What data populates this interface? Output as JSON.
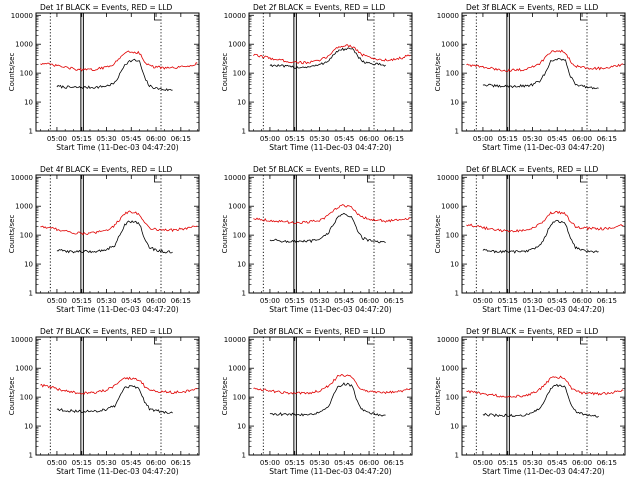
{
  "figure": {
    "common": {
      "type": "line",
      "xlabel": "Start Time (11-Dec-03 04:47:20)",
      "ylabel": "Counts/sec",
      "xtick_labels": [
        "05:00",
        "05:15",
        "05:30",
        "05:45",
        "06:00",
        "06:15"
      ],
      "xtick_minutes": [
        0,
        15,
        30,
        45,
        60,
        75
      ],
      "ytick_labels": [
        "1",
        "10",
        "100",
        "1000",
        "10000"
      ],
      "yscale": "log",
      "ylim": [
        1,
        12000
      ],
      "xlim_minutes": [
        -12.67,
        86
      ],
      "series_names": [
        "Events",
        "LLD"
      ],
      "series_colors": [
        "#000000",
        "#e00000"
      ],
      "dotted_lines_minutes": [
        -4,
        63
      ],
      "double_lines_minutes": [
        14.5,
        16
      ]
    }
  },
  "chart_data": [
    {
      "type": "line",
      "title": "Det 1f BLACK = Events, RED = LLD",
      "xlabel": "Start Time (11-Dec-03 04:47:20)",
      "ylabel": "Counts/sec",
      "x_minutes": [
        -10,
        -5,
        0,
        5,
        10,
        15,
        20,
        25,
        30,
        35,
        38,
        41,
        44,
        47,
        50,
        53,
        56,
        60,
        65,
        70,
        75,
        80,
        85
      ],
      "series": [
        {
          "name": "Events",
          "color": "black",
          "values": [
            null,
            null,
            35,
            33,
            32,
            32,
            32,
            33,
            36,
            45,
            90,
            200,
            260,
            280,
            250,
            70,
            36,
            30,
            27,
            26,
            null,
            null,
            null
          ]
        },
        {
          "name": "LLD",
          "color": "red",
          "values": [
            220,
            200,
            180,
            160,
            140,
            130,
            130,
            140,
            160,
            220,
            320,
            520,
            560,
            540,
            500,
            250,
            180,
            160,
            150,
            150,
            160,
            180,
            220
          ]
        }
      ]
    },
    {
      "type": "line",
      "title": "Det 2f BLACK = Events, RED = LLD",
      "xlabel": "Start Time (11-Dec-03 04:47:20)",
      "ylabel": "Counts/sec",
      "x_minutes": [
        -10,
        -5,
        0,
        5,
        10,
        15,
        20,
        25,
        30,
        35,
        38,
        41,
        44,
        47,
        50,
        53,
        56,
        60,
        65,
        70,
        75,
        80,
        85
      ],
      "series": [
        {
          "name": "Events",
          "color": "black",
          "values": [
            null,
            null,
            190,
            180,
            170,
            160,
            160,
            170,
            190,
            260,
            400,
            580,
            650,
            700,
            650,
            400,
            260,
            220,
            200,
            190,
            null,
            null,
            null
          ]
        },
        {
          "name": "LLD",
          "color": "red",
          "values": [
            420,
            380,
            330,
            290,
            260,
            240,
            230,
            240,
            270,
            380,
            550,
            800,
            870,
            900,
            850,
            600,
            430,
            350,
            300,
            280,
            300,
            340,
            420
          ]
        }
      ]
    },
    {
      "type": "line",
      "title": "Det 3f BLACK = Events, RED = LLD",
      "xlabel": "Start Time (11-Dec-03 04:47:20)",
      "ylabel": "Counts/sec",
      "x_minutes": [
        -10,
        -5,
        0,
        5,
        10,
        15,
        20,
        25,
        30,
        35,
        38,
        41,
        44,
        47,
        50,
        53,
        56,
        60,
        65,
        70,
        75,
        80,
        85
      ],
      "series": [
        {
          "name": "Events",
          "color": "black",
          "values": [
            null,
            null,
            40,
            37,
            35,
            35,
            35,
            36,
            40,
            55,
            110,
            250,
            320,
            300,
            260,
            80,
            42,
            36,
            32,
            30,
            null,
            null,
            null
          ]
        },
        {
          "name": "LLD",
          "color": "red",
          "values": [
            200,
            180,
            160,
            145,
            130,
            125,
            125,
            135,
            160,
            230,
            350,
            550,
            600,
            580,
            520,
            260,
            180,
            160,
            150,
            145,
            150,
            170,
            200
          ]
        }
      ]
    },
    {
      "type": "line",
      "title": "Det 4f BLACK = Events, RED = LLD",
      "xlabel": "Start Time (11-Dec-03 04:47:20)",
      "ylabel": "Counts/sec",
      "x_minutes": [
        -10,
        -5,
        0,
        5,
        10,
        15,
        20,
        25,
        30,
        35,
        38,
        41,
        44,
        47,
        50,
        53,
        56,
        60,
        65,
        70,
        75,
        80,
        85
      ],
      "series": [
        {
          "name": "Events",
          "color": "black",
          "values": [
            null,
            null,
            30,
            28,
            27,
            27,
            27,
            28,
            32,
            45,
            100,
            230,
            300,
            290,
            250,
            75,
            38,
            30,
            27,
            26,
            null,
            null,
            null
          ]
        },
        {
          "name": "LLD",
          "color": "red",
          "values": [
            200,
            180,
            160,
            140,
            120,
            115,
            115,
            125,
            150,
            220,
            340,
            560,
            620,
            600,
            540,
            260,
            180,
            160,
            150,
            150,
            160,
            180,
            210
          ]
        }
      ]
    },
    {
      "type": "line",
      "title": "Det 5f BLACK = Events, RED = LLD",
      "xlabel": "Start Time (11-Dec-03 04:47:20)",
      "ylabel": "Counts/sec",
      "x_minutes": [
        -10,
        -5,
        0,
        5,
        10,
        15,
        20,
        25,
        30,
        35,
        38,
        41,
        44,
        47,
        50,
        53,
        56,
        60,
        65,
        70,
        75,
        80,
        85
      ],
      "series": [
        {
          "name": "Events",
          "color": "black",
          "values": [
            null,
            null,
            70,
            65,
            60,
            60,
            60,
            62,
            70,
            110,
            220,
            420,
            520,
            480,
            400,
            150,
            80,
            65,
            58,
            55,
            null,
            null,
            null
          ]
        },
        {
          "name": "LLD",
          "color": "red",
          "values": [
            380,
            350,
            320,
            300,
            280,
            275,
            275,
            290,
            320,
            450,
            650,
            950,
            1050,
            1000,
            900,
            550,
            420,
            360,
            330,
            310,
            320,
            340,
            380
          ]
        }
      ]
    },
    {
      "type": "line",
      "title": "Det 6f BLACK = Events, RED = LLD",
      "xlabel": "Start Time (11-Dec-03 04:47:20)",
      "ylabel": "Counts/sec",
      "x_minutes": [
        -10,
        -5,
        0,
        5,
        10,
        15,
        20,
        25,
        30,
        35,
        38,
        41,
        44,
        47,
        50,
        53,
        56,
        60,
        65,
        70,
        75,
        80,
        85
      ],
      "series": [
        {
          "name": "Events",
          "color": "black",
          "values": [
            null,
            null,
            30,
            28,
            27,
            27,
            27,
            28,
            32,
            45,
            100,
            230,
            300,
            290,
            250,
            75,
            38,
            30,
            28,
            27,
            null,
            null,
            null
          ]
        },
        {
          "name": "LLD",
          "color": "red",
          "values": [
            230,
            210,
            180,
            160,
            145,
            140,
            140,
            150,
            175,
            240,
            360,
            560,
            620,
            600,
            540,
            280,
            200,
            180,
            170,
            165,
            170,
            190,
            220
          ]
        }
      ]
    },
    {
      "type": "line",
      "title": "Det 7f BLACK = Events, RED = LLD",
      "xlabel": "Start Time (11-Dec-03 04:47:20)",
      "ylabel": "Counts/sec",
      "x_minutes": [
        -10,
        -5,
        0,
        5,
        10,
        15,
        20,
        25,
        30,
        35,
        38,
        41,
        44,
        47,
        50,
        53,
        56,
        60,
        65,
        70,
        75,
        80,
        85
      ],
      "series": [
        {
          "name": "Events",
          "color": "black",
          "values": [
            null,
            null,
            38,
            35,
            33,
            32,
            32,
            34,
            38,
            50,
            100,
            200,
            230,
            220,
            190,
            70,
            40,
            34,
            30,
            28,
            null,
            null,
            null
          ]
        },
        {
          "name": "LLD",
          "color": "red",
          "values": [
            260,
            230,
            190,
            165,
            145,
            140,
            140,
            150,
            175,
            240,
            330,
            430,
            460,
            440,
            400,
            240,
            180,
            160,
            150,
            145,
            150,
            165,
            190
          ]
        }
      ]
    },
    {
      "type": "line",
      "title": "Det 8f BLACK = Events, RED = LLD",
      "xlabel": "Start Time (11-Dec-03 04:47:20)",
      "ylabel": "Counts/sec",
      "x_minutes": [
        -10,
        -5,
        0,
        5,
        10,
        15,
        20,
        25,
        30,
        35,
        38,
        41,
        44,
        47,
        50,
        53,
        56,
        60,
        65,
        70,
        75,
        80,
        85
      ],
      "series": [
        {
          "name": "Events",
          "color": "black",
          "values": [
            null,
            null,
            27,
            26,
            25,
            25,
            25,
            26,
            30,
            45,
            100,
            220,
            290,
            280,
            240,
            70,
            36,
            28,
            25,
            24,
            null,
            null,
            null
          ]
        },
        {
          "name": "LLD",
          "color": "red",
          "values": [
            200,
            185,
            165,
            150,
            140,
            135,
            135,
            145,
            170,
            240,
            340,
            520,
            580,
            560,
            500,
            250,
            180,
            160,
            150,
            145,
            150,
            165,
            190
          ]
        }
      ]
    },
    {
      "type": "line",
      "title": "Det 9f BLACK = Events, RED = LLD",
      "xlabel": "Start Time (11-Dec-03 04:47:20)",
      "ylabel": "Counts/sec",
      "x_minutes": [
        -10,
        -5,
        0,
        5,
        10,
        15,
        20,
        25,
        30,
        35,
        38,
        41,
        44,
        47,
        50,
        53,
        56,
        60,
        65,
        70,
        75,
        80,
        85
      ],
      "series": [
        {
          "name": "Events",
          "color": "black",
          "values": [
            null,
            null,
            25,
            24,
            23,
            23,
            23,
            24,
            28,
            42,
            90,
            200,
            260,
            250,
            220,
            65,
            33,
            26,
            23,
            22,
            null,
            null,
            null
          ]
        },
        {
          "name": "LLD",
          "color": "red",
          "values": [
            160,
            145,
            130,
            120,
            110,
            108,
            108,
            115,
            135,
            200,
            290,
            440,
            500,
            480,
            430,
            220,
            160,
            140,
            135,
            130,
            135,
            150,
            170
          ]
        }
      ]
    }
  ]
}
